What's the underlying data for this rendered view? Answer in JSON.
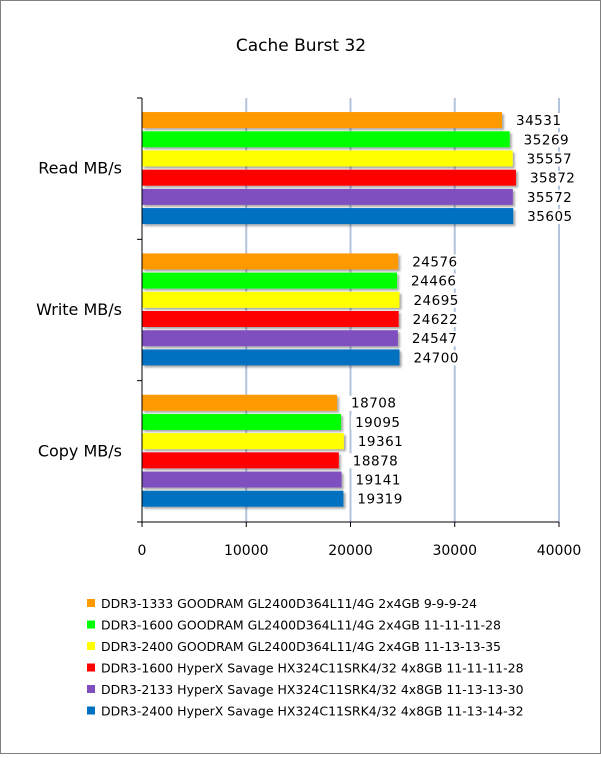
{
  "chart_data": {
    "type": "bar",
    "orientation": "horizontal",
    "title": "Cache Burst 32",
    "xlabel": "",
    "ylabel": "",
    "xlim": [
      0,
      40000
    ],
    "xticks": [
      0,
      10000,
      20000,
      30000,
      40000
    ],
    "grid": true,
    "legend_position": "bottom",
    "categories": [
      "Read MB/s",
      "Write MB/s",
      "Copy MB/s"
    ],
    "series": [
      {
        "name": "DDR3-1333 GOODRAM GL2400D364L11/4G 2x4GB 9-9-9-24",
        "color": "#FF9900",
        "values": [
          34531,
          24576,
          18708
        ]
      },
      {
        "name": "DDR3-1600 GOODRAM GL2400D364L11/4G 2x4GB 11-11-11-28",
        "color": "#00FF00",
        "values": [
          35269,
          24466,
          19095
        ]
      },
      {
        "name": "DDR3-2400 GOODRAM GL2400D364L11/4G 2x4GB 11-13-13-35",
        "color": "#FFFF00",
        "values": [
          35557,
          24695,
          19361
        ]
      },
      {
        "name": "DDR3-1600 HyperX Savage HX324C11SRK4/32 4x8GB 11-11-11-28",
        "color": "#FF0000",
        "values": [
          35872,
          24622,
          18878
        ]
      },
      {
        "name": "DDR3-2133 HyperX Savage HX324C11SRK4/32 4x8GB 11-13-13-30",
        "color": "#7F4FBF",
        "values": [
          35572,
          24547,
          19141
        ]
      },
      {
        "name": "DDR3-2400 HyperX Savage HX324C11SRK4/32 4x8GB 11-13-14-32",
        "color": "#0070C0",
        "values": [
          35605,
          24700,
          19319
        ]
      }
    ]
  }
}
